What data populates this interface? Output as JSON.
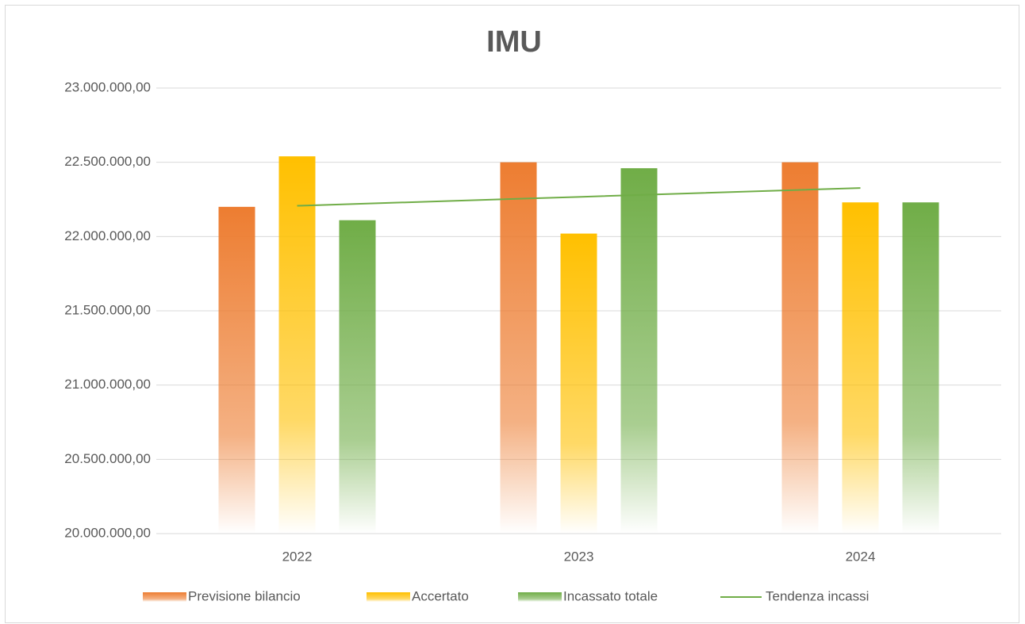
{
  "chart_data": {
    "type": "bar",
    "title": "IMU",
    "categories": [
      "2022",
      "2023",
      "2024"
    ],
    "series": [
      {
        "name": "Previsione bilancio",
        "color": "#ED7D31",
        "values": [
          22200000,
          22500000,
          22500000
        ]
      },
      {
        "name": "Accertato",
        "color": "#FFC000",
        "values": [
          22540000,
          22020000,
          22230000
        ]
      },
      {
        "name": "Incassato totale",
        "color": "#70AD47",
        "values": [
          22110000,
          22460000,
          22230000
        ]
      },
      {
        "name": "Tendenza incassi",
        "color": "#70AD47",
        "type": "line",
        "values": [
          22207000,
          22267000,
          22327000
        ]
      }
    ],
    "ylim": [
      20000000,
      23000000
    ],
    "yticks": [
      {
        "value": 20000000,
        "label": "20.000.000,00"
      },
      {
        "value": 20500000,
        "label": "20.500.000,00"
      },
      {
        "value": 21000000,
        "label": "21.000.000,00"
      },
      {
        "value": 21500000,
        "label": "21.500.000,00"
      },
      {
        "value": 22000000,
        "label": "22.000.000,00"
      },
      {
        "value": 22500000,
        "label": "22.500.000,00"
      },
      {
        "value": 23000000,
        "label": "23.000.000,00"
      }
    ],
    "grid": true,
    "legend": "bottom"
  }
}
